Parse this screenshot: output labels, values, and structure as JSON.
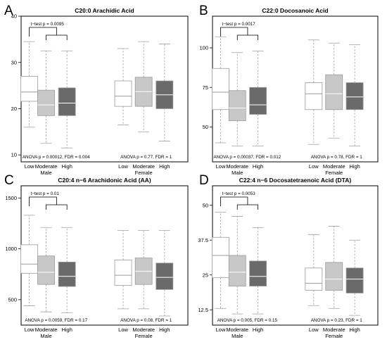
{
  "chart_data": [
    {
      "type": "boxplot",
      "panel": "A",
      "title": "C20:0 Arachidic Acid",
      "ylim": [
        8.5,
        40
      ],
      "yticks": [
        10,
        20,
        30,
        40
      ],
      "ytick_labels": [
        "10",
        "20",
        "30",
        "40"
      ],
      "categories": [
        "Low",
        "Moderate",
        "High",
        "Low",
        "Moderate",
        "High"
      ],
      "groups": [
        {
          "name": "Male",
          "stat": "ANOVA p = 0.00012, FDR = 0.004"
        },
        {
          "name": "Female",
          "stat": "ANOVA p = 0.77, FDR = 1"
        }
      ],
      "ttest": {
        "label": "t−test p = 0.0095"
      },
      "boxes": [
        {
          "min": 16,
          "q1": 21.6,
          "median": 23.6,
          "q3": 27,
          "max": 34.5,
          "color": "#ffffff"
        },
        {
          "min": 12.5,
          "q1": 18.5,
          "median": 20.8,
          "q3": 24,
          "max": 32.5,
          "color": "#c8c8c8"
        },
        {
          "min": 11.5,
          "q1": 18.5,
          "median": 21.2,
          "q3": 24.5,
          "max": 32.5,
          "color": "#6a6a6a"
        },
        {
          "min": 16.5,
          "q1": 20.5,
          "median": 22.7,
          "q3": 26,
          "max": 33,
          "color": "#ffffff"
        },
        {
          "min": 15,
          "q1": 20.5,
          "median": 23.7,
          "q3": 26.8,
          "max": 34.5,
          "color": "#c8c8c8"
        },
        {
          "min": 13,
          "q1": 20,
          "median": 23,
          "q3": 26,
          "max": 34,
          "color": "#6a6a6a"
        }
      ]
    },
    {
      "type": "boxplot",
      "panel": "B",
      "title": "C22:0 Docosanoic Acid",
      "ylim": [
        28,
        120
      ],
      "yticks": [
        50,
        75,
        100
      ],
      "ytick_labels": [
        "50",
        "75",
        "100"
      ],
      "categories": [
        "Low",
        "Moderate",
        "High",
        "Low",
        "Moderate",
        "High"
      ],
      "groups": [
        {
          "name": "Male",
          "stat": "ANOVA p = 0.00037, FDR = 0.012"
        },
        {
          "name": "Female",
          "stat": "ANOVA p = 0.78, FDR = 1"
        }
      ],
      "ttest": {
        "label": "t−test p = 0.0017"
      },
      "boxes": [
        {
          "min": 40,
          "q1": 61,
          "median": 72,
          "q3": 87,
          "max": 107,
          "color": "#ffffff"
        },
        {
          "min": 38,
          "q1": 54,
          "median": 62,
          "q3": 73,
          "max": 97,
          "color": "#c8c8c8"
        },
        {
          "min": 38,
          "q1": 58,
          "median": 64,
          "q3": 75,
          "max": 98,
          "color": "#6a6a6a"
        },
        {
          "min": 39,
          "q1": 61,
          "median": 71,
          "q3": 78,
          "max": 105,
          "color": "#ffffff"
        },
        {
          "min": 43,
          "q1": 61,
          "median": 71,
          "q3": 83,
          "max": 103,
          "color": "#c8c8c8"
        },
        {
          "min": 38,
          "q1": 61,
          "median": 69,
          "q3": 78,
          "max": 102,
          "color": "#6a6a6a"
        }
      ]
    },
    {
      "type": "boxplot",
      "panel": "C",
      "title": "C20:4 n−6 Arachidonic Acid (AA)",
      "ylim": [
        250,
        1620
      ],
      "yticks": [
        500,
        1000,
        1500
      ],
      "ytick_labels": [
        "500",
        "1000",
        "1500"
      ],
      "categories": [
        "Low",
        "Moderate",
        "High",
        "Low",
        "Moderate",
        "High"
      ],
      "groups": [
        {
          "name": "Male",
          "stat": "ANOVA p = 0.0059, FDR = 0.17"
        },
        {
          "name": "Female",
          "stat": "ANOVA p = 0.08, FDR = 1"
        }
      ],
      "ttest": {
        "label": "t−test p = 0.01"
      },
      "boxes": [
        {
          "min": 440,
          "q1": 760,
          "median": 850,
          "q3": 1040,
          "max": 1330,
          "color": "#ffffff"
        },
        {
          "min": 380,
          "q1": 650,
          "median": 770,
          "q3": 930,
          "max": 1210,
          "color": "#c8c8c8"
        },
        {
          "min": 370,
          "q1": 630,
          "median": 730,
          "q3": 870,
          "max": 1210,
          "color": "#6a6a6a"
        },
        {
          "min": 410,
          "q1": 640,
          "median": 740,
          "q3": 890,
          "max": 1180,
          "color": "#ffffff"
        },
        {
          "min": 410,
          "q1": 650,
          "median": 780,
          "q3": 910,
          "max": 1180,
          "color": "#c8c8c8"
        },
        {
          "min": 340,
          "q1": 600,
          "median": 720,
          "q3": 860,
          "max": 1180,
          "color": "#6a6a6a"
        }
      ]
    },
    {
      "type": "boxplot",
      "panel": "D",
      "title": "C22:4 n−6 Docosatetraenoic Acid (DTA)",
      "ylim": [
        7,
        57
      ],
      "yticks": [
        12.5,
        25,
        37.5,
        50
      ],
      "ytick_labels": [
        "12.5",
        "25",
        "37.5",
        "50"
      ],
      "categories": [
        "Low",
        "Moderate",
        "High",
        "Low",
        "Moderate",
        "High"
      ],
      "groups": [
        {
          "name": "Male",
          "stat": "ANOVA p = 0.005, FDR = 0.15"
        },
        {
          "name": "Female",
          "stat": "ANOVA p = 0.23, FDR = 1"
        }
      ],
      "ttest": {
        "label": "t−test p = 0.0053"
      },
      "boxes": [
        {
          "min": 13,
          "q1": 24,
          "median": 32,
          "q3": 38.5,
          "max": 47.5,
          "color": "#ffffff"
        },
        {
          "min": 11,
          "q1": 21,
          "median": 26,
          "q3": 32,
          "max": 46,
          "color": "#c8c8c8"
        },
        {
          "min": 11,
          "q1": 21,
          "median": 24.5,
          "q3": 30,
          "max": 42,
          "color": "#6a6a6a"
        },
        {
          "min": 14,
          "q1": 19.5,
          "median": 22,
          "q3": 27.5,
          "max": 39.5,
          "color": "#ffffff"
        },
        {
          "min": 13,
          "q1": 19.5,
          "median": 23.5,
          "q3": 29.5,
          "max": 42.5,
          "color": "#c8c8c8"
        },
        {
          "min": 10.5,
          "q1": 18.5,
          "median": 23.5,
          "q3": 27.5,
          "max": 37.5,
          "color": "#6a6a6a"
        }
      ]
    }
  ]
}
